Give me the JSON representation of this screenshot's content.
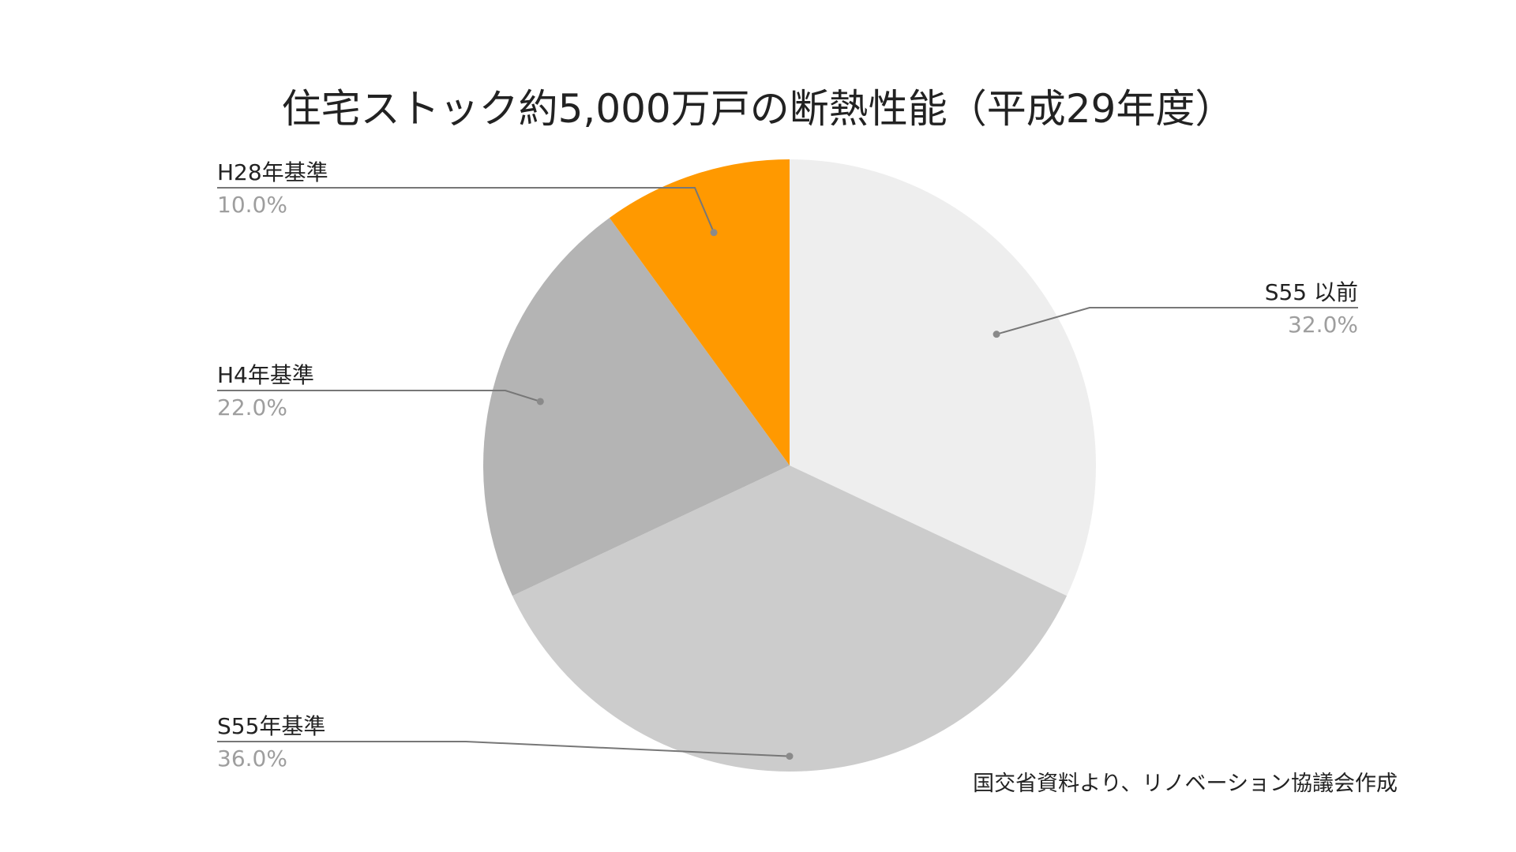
{
  "chart_data": {
    "type": "pie",
    "title": "住宅ストック約5,000万戸の断熱性能（平成29年度）",
    "slices": [
      {
        "label": "S55 以前",
        "value": 32.0,
        "value_label": "32.0%",
        "color": "#eeeeee"
      },
      {
        "label": "S55年基準",
        "value": 36.0,
        "value_label": "36.0%",
        "color": "#cccccc"
      },
      {
        "label": "H4年基準",
        "value": 22.0,
        "value_label": "22.0%",
        "color": "#b4b4b4"
      },
      {
        "label": "H28年基準",
        "value": 10.0,
        "value_label": "10.0%",
        "color": "#ff9900"
      }
    ],
    "start": "12 o'clock",
    "direction": "clockwise",
    "labels": "outside with leader lines",
    "source_note": "国交省資料より、リノベーション協議会作成"
  }
}
